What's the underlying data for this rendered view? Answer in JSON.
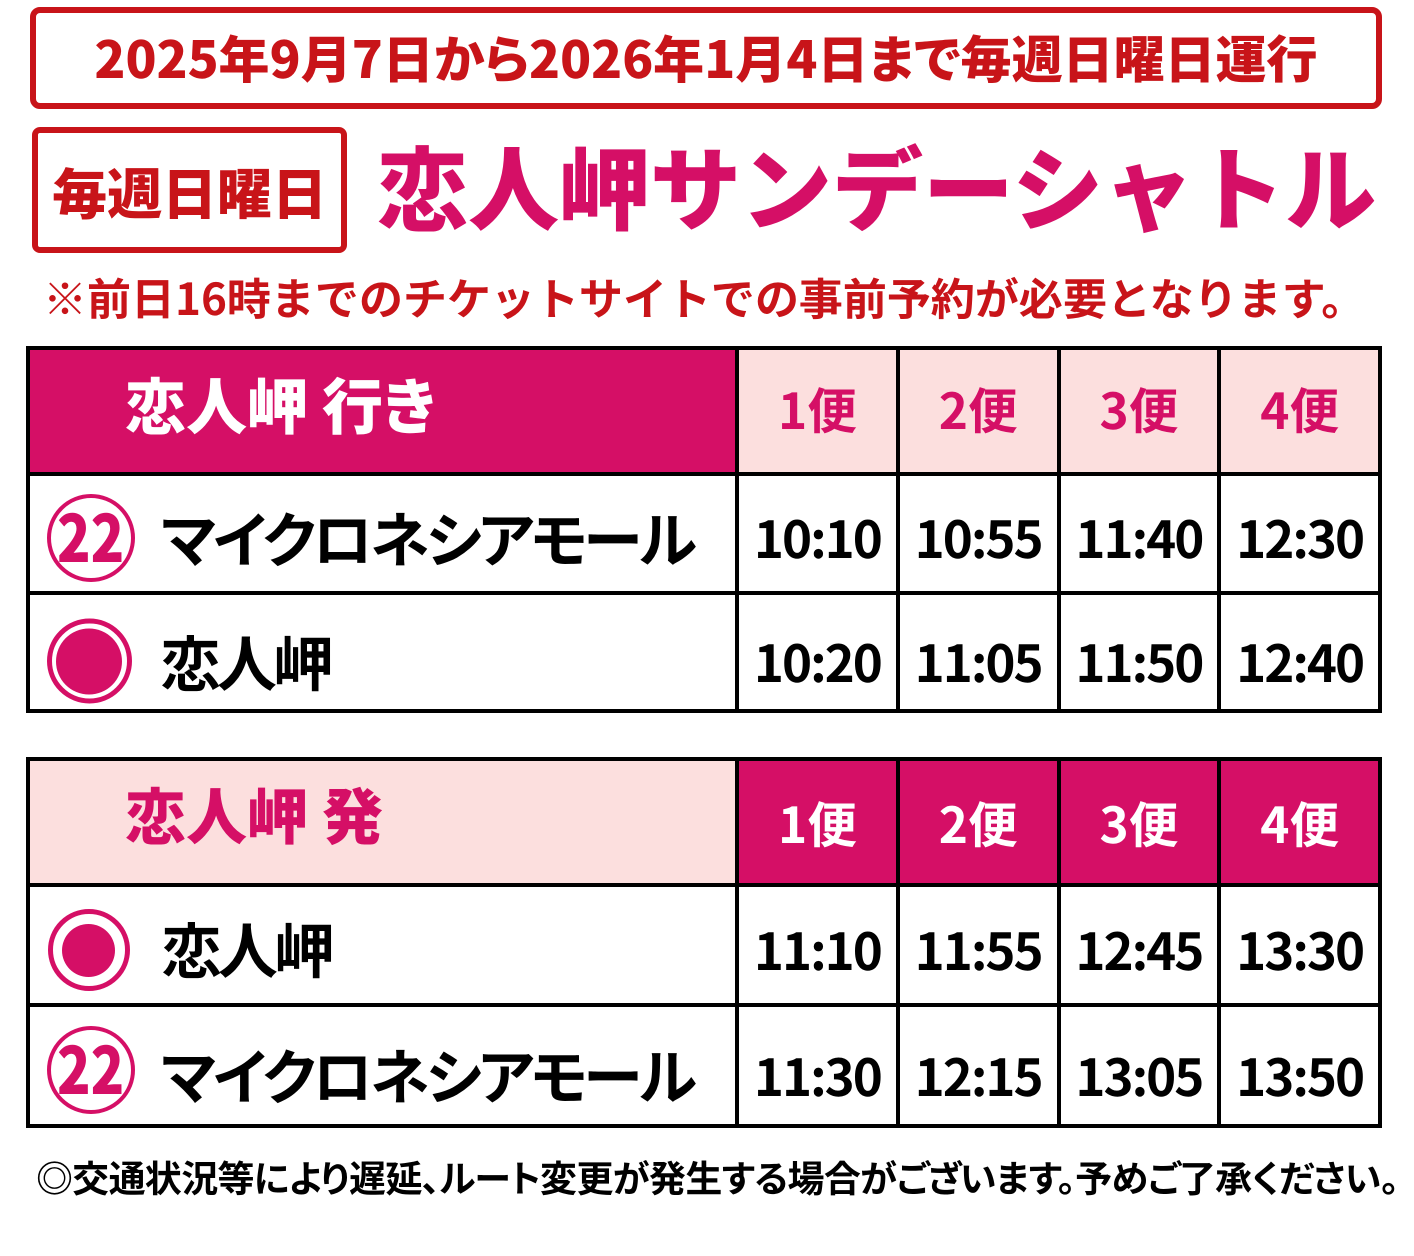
{
  "poster": {
    "background": "#ffffff"
  },
  "colors": {
    "red": "#c81419",
    "magenta": "#d50f66",
    "light_pink": "#fcdfde",
    "black": "#000000",
    "white": "#ffffff"
  },
  "banner": {
    "text": "2025年9月7日から2026年1月4日まで毎週日曜日運行"
  },
  "title_block": {
    "badge": "毎週日曜日",
    "title": "恋人岬サンデーシャトル"
  },
  "note": {
    "text": "※前日16時までのチケットサイトでの事前予約が必要となります。"
  },
  "tables": [
    {
      "header": {
        "label": "恋人岬 行き",
        "columns": [
          "1便",
          "2便",
          "3便",
          "4便"
        ]
      },
      "rows": [
        {
          "icon": "route-22-badge",
          "icon_text": "22",
          "station": "マイクロネシアモール",
          "times": [
            "10:10",
            "10:55",
            "11:40",
            "12:30"
          ]
        },
        {
          "icon": "bus-stop",
          "station": "恋人岬",
          "times": [
            "10:20",
            "11:05",
            "11:50",
            "12:40"
          ]
        }
      ]
    },
    {
      "header": {
        "label": "恋人岬 発",
        "columns": [
          "1便",
          "2便",
          "3便",
          "4便"
        ]
      },
      "rows": [
        {
          "icon": "bus-stop",
          "station": "恋人岬",
          "times": [
            "11:10",
            "11:55",
            "12:45",
            "13:30"
          ]
        },
        {
          "icon": "route-22-badge",
          "icon_text": "22",
          "station": "マイクロネシアモール",
          "times": [
            "11:30",
            "12:15",
            "13:05",
            "13:50"
          ]
        }
      ]
    }
  ],
  "footer": {
    "text": "◎交通状況等により遅延、ルート変更が発生する場合がございます。予めご了承ください。"
  }
}
